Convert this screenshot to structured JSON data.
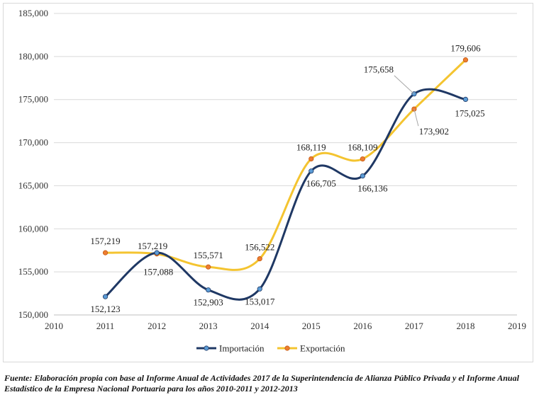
{
  "chart_data": {
    "type": "line",
    "title": "",
    "xlabel": "",
    "ylabel": "",
    "xlim": [
      2010,
      2019
    ],
    "ylim": [
      150000,
      185000
    ],
    "x_ticks": [
      2010,
      2011,
      2012,
      2013,
      2014,
      2015,
      2016,
      2017,
      2018,
      2019
    ],
    "y_ticks": [
      150000,
      155000,
      160000,
      165000,
      170000,
      175000,
      180000,
      185000
    ],
    "grid": "horizontal",
    "legend_position": "bottom",
    "series": [
      {
        "name": "Importación",
        "color": "#1f3864",
        "marker_color": "#5b9bd5",
        "x": [
          2011,
          2012,
          2013,
          2014,
          2015,
          2016,
          2017,
          2018
        ],
        "values": [
          152123,
          157219,
          152903,
          153017,
          166705,
          166136,
          175658,
          175025
        ],
        "labels": [
          "152,123",
          "157,219",
          "152,903",
          "153,017",
          "166,705",
          "166,136",
          "175,658",
          "175,025"
        ]
      },
      {
        "name": "Exportación",
        "color": "#f4c430",
        "marker_color": "#ed7d31",
        "x": [
          2011,
          2012,
          2013,
          2014,
          2015,
          2016,
          2017,
          2018
        ],
        "values": [
          157219,
          157088,
          155571,
          156522,
          168119,
          168109,
          173902,
          179606
        ],
        "labels": [
          "157,219",
          "157,088",
          "155,571",
          "156,522",
          "168,119",
          "168,109",
          "173,902",
          "179,606"
        ]
      }
    ]
  },
  "source_note": {
    "lead": "Fuente:",
    "text": " Elaboración propia con base al Informe Anual de Actividades 2017 de la Superintendencia de Alianza Público Privada y el Informe Anual Estadístico de la Empresa Nacional Portuaria para los años 2010-2011 y 2012-2013"
  }
}
